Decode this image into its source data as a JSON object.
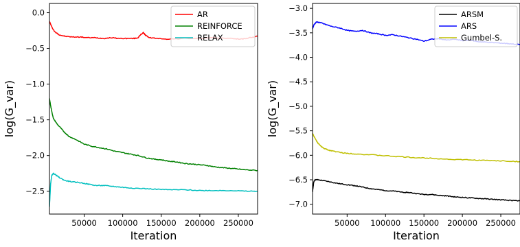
{
  "chart_data": [
    {
      "type": "line",
      "title": "",
      "xlabel": "Iteration",
      "ylabel": "log(G_var)",
      "xlim": [
        5000,
        275000
      ],
      "ylim": [
        -2.82,
        0.13
      ],
      "xticks": [
        50000,
        100000,
        150000,
        200000,
        250000
      ],
      "xtick_labels": [
        "50000",
        "100000",
        "150000",
        "200000",
        "250000"
      ],
      "yticks": [
        0.0,
        -0.5,
        -1.0,
        -1.5,
        -2.0,
        -2.5
      ],
      "ytick_labels": [
        "0.0",
        "−0.5",
        "−1.0",
        "−1.5",
        "−2.0",
        "−2.5"
      ],
      "legend_position": "top-right",
      "grid": false,
      "series": [
        {
          "name": "AR",
          "color": "#ff0000",
          "x": [
            5000,
            8000,
            12000,
            18000,
            25000,
            35000,
            45000,
            55000,
            65000,
            75000,
            85000,
            95000,
            105000,
            115000,
            120000,
            124000,
            127000,
            130000,
            135000,
            145000,
            160000,
            180000,
            200000,
            220000,
            240000,
            255000,
            265000,
            275000
          ],
          "y": [
            -0.12,
            -0.2,
            -0.27,
            -0.31,
            -0.33,
            -0.34,
            -0.34,
            -0.35,
            -0.35,
            -0.36,
            -0.35,
            -0.36,
            -0.36,
            -0.36,
            -0.35,
            -0.3,
            -0.28,
            -0.32,
            -0.35,
            -0.36,
            -0.37,
            -0.36,
            -0.36,
            -0.35,
            -0.36,
            -0.37,
            -0.35,
            -0.33
          ]
        },
        {
          "name": "REINFORCE",
          "color": "#008000",
          "x": [
            5000,
            7000,
            10000,
            15000,
            20000,
            25000,
            30000,
            40000,
            50000,
            60000,
            70000,
            80000,
            90000,
            100000,
            110000,
            120000,
            130000,
            140000,
            150000,
            160000,
            170000,
            180000,
            190000,
            200000,
            210000,
            220000,
            230000,
            240000,
            250000,
            260000,
            275000
          ],
          "y": [
            -1.2,
            -1.33,
            -1.48,
            -1.56,
            -1.62,
            -1.68,
            -1.73,
            -1.78,
            -1.84,
            -1.87,
            -1.89,
            -1.91,
            -1.94,
            -1.96,
            -1.98,
            -2.0,
            -2.03,
            -2.05,
            -2.06,
            -2.08,
            -2.09,
            -2.11,
            -2.12,
            -2.13,
            -2.14,
            -2.16,
            -2.17,
            -2.18,
            -2.19,
            -2.2,
            -2.21
          ]
        },
        {
          "name": "RELAX",
          "color": "#00bfbf",
          "x": [
            5000,
            6500,
            8000,
            10000,
            13000,
            18000,
            25000,
            35000,
            45000,
            55000,
            65000,
            75000,
            85000,
            95000,
            105000,
            120000,
            140000,
            160000,
            180000,
            200000,
            220000,
            240000,
            260000,
            275000
          ],
          "y": [
            -2.72,
            -2.4,
            -2.28,
            -2.25,
            -2.27,
            -2.31,
            -2.35,
            -2.37,
            -2.38,
            -2.4,
            -2.42,
            -2.42,
            -2.43,
            -2.44,
            -2.45,
            -2.46,
            -2.47,
            -2.48,
            -2.48,
            -2.49,
            -2.49,
            -2.49,
            -2.5,
            -2.5
          ]
        }
      ]
    },
    {
      "type": "line",
      "title": "",
      "xlabel": "Iteration",
      "ylabel": "log(G_var)",
      "xlim": [
        5000,
        275000
      ],
      "ylim": [
        -7.2,
        -2.9
      ],
      "xticks": [
        50000,
        100000,
        150000,
        200000,
        250000
      ],
      "xtick_labels": [
        "50000",
        "100000",
        "150000",
        "200000",
        "250000"
      ],
      "yticks": [
        -3.0,
        -3.5,
        -4.0,
        -4.5,
        -5.0,
        -5.5,
        -6.0,
        -6.5,
        -7.0
      ],
      "ytick_labels": [
        "−3.0",
        "−3.5",
        "−4.0",
        "−4.5",
        "−5.0",
        "−5.5",
        "−6.0",
        "−6.5",
        "−7.0"
      ],
      "legend_position": "top-right",
      "grid": false,
      "series": [
        {
          "name": "ARSM",
          "color": "#000000",
          "x": [
            5000,
            6500,
            8000,
            12000,
            20000,
            30000,
            40000,
            50000,
            60000,
            70000,
            80000,
            90000,
            100000,
            110000,
            120000,
            130000,
            140000,
            150000,
            160000,
            170000,
            180000,
            190000,
            200000,
            210000,
            220000,
            230000,
            240000,
            250000,
            260000,
            275000
          ],
          "y": [
            -6.75,
            -6.55,
            -6.5,
            -6.5,
            -6.52,
            -6.55,
            -6.58,
            -6.6,
            -6.62,
            -6.65,
            -6.68,
            -6.7,
            -6.72,
            -6.73,
            -6.75,
            -6.76,
            -6.78,
            -6.8,
            -6.8,
            -6.82,
            -6.83,
            -6.85,
            -6.86,
            -6.87,
            -6.88,
            -6.89,
            -6.9,
            -6.91,
            -6.92,
            -6.93
          ]
        },
        {
          "name": "ARS",
          "color": "#0000ff",
          "x": [
            5000,
            7000,
            10000,
            15000,
            20000,
            30000,
            40000,
            50000,
            60000,
            70000,
            80000,
            90000,
            100000,
            110000,
            120000,
            130000,
            140000,
            150000,
            160000,
            170000,
            180000,
            190000,
            200000,
            210000,
            220000,
            230000,
            240000,
            250000,
            260000,
            275000
          ],
          "y": [
            -3.42,
            -3.33,
            -3.28,
            -3.29,
            -3.32,
            -3.37,
            -3.4,
            -3.45,
            -3.47,
            -3.45,
            -3.5,
            -3.52,
            -3.55,
            -3.54,
            -3.57,
            -3.6,
            -3.63,
            -3.67,
            -3.63,
            -3.62,
            -3.65,
            -3.63,
            -3.66,
            -3.65,
            -3.68,
            -3.69,
            -3.7,
            -3.71,
            -3.72,
            -3.74
          ]
        },
        {
          "name": "Gumbel-S.",
          "color": "#bfbf00",
          "x": [
            5000,
            8000,
            12000,
            16000,
            20000,
            25000,
            30000,
            40000,
            50000,
            60000,
            80000,
            100000,
            120000,
            140000,
            160000,
            180000,
            200000,
            220000,
            240000,
            260000,
            275000
          ],
          "y": [
            -5.55,
            -5.65,
            -5.75,
            -5.82,
            -5.86,
            -5.89,
            -5.91,
            -5.94,
            -5.96,
            -5.97,
            -5.99,
            -6.01,
            -6.03,
            -6.05,
            -6.06,
            -6.08,
            -6.09,
            -6.1,
            -6.11,
            -6.12,
            -6.13
          ]
        }
      ]
    }
  ]
}
